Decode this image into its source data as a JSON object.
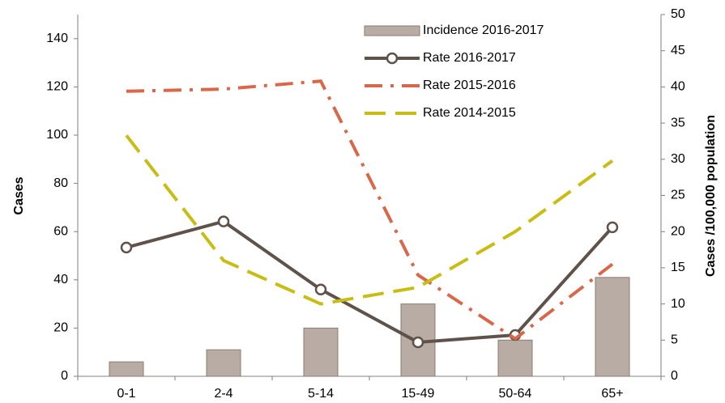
{
  "chart_data": {
    "type": "combo",
    "y_label": "Cases",
    "y2_label": "Cases /100,000 population",
    "categories": [
      "0-1",
      "2-4",
      "5-14",
      "15-49",
      "50-64",
      "65+"
    ],
    "ylim": [
      0,
      150
    ],
    "yticks": [
      0,
      20,
      40,
      60,
      80,
      100,
      120,
      140
    ],
    "y2lim": [
      0,
      50
    ],
    "y2ticks": [
      0,
      5,
      10,
      15,
      20,
      25,
      30,
      35,
      40,
      45,
      50
    ],
    "legend": "upper right",
    "series": [
      {
        "name": "Incidence 2016-2017",
        "type": "bar",
        "axis": "y",
        "color": "#b9aca4",
        "values": [
          6,
          11,
          20,
          30,
          15,
          41
        ]
      },
      {
        "name": "Rate 2016-2017",
        "type": "line",
        "axis": "y2",
        "color": "#5e524b",
        "style": "solid",
        "marker": "circle",
        "values": [
          17.8,
          21.4,
          12,
          4.7,
          5.7,
          20.6
        ]
      },
      {
        "name": "Rate 2015-2016",
        "type": "line",
        "axis": "y2",
        "color": "#d9684a",
        "style": "dashdot",
        "values": [
          39.4,
          39.7,
          40.8,
          14,
          5.2,
          15.5
        ]
      },
      {
        "name": "Rate 2014-2015",
        "type": "line",
        "axis": "y2",
        "color": "#c8bd14",
        "style": "dash",
        "values": [
          33.3,
          16,
          10,
          12.3,
          20,
          29.8
        ]
      }
    ]
  }
}
